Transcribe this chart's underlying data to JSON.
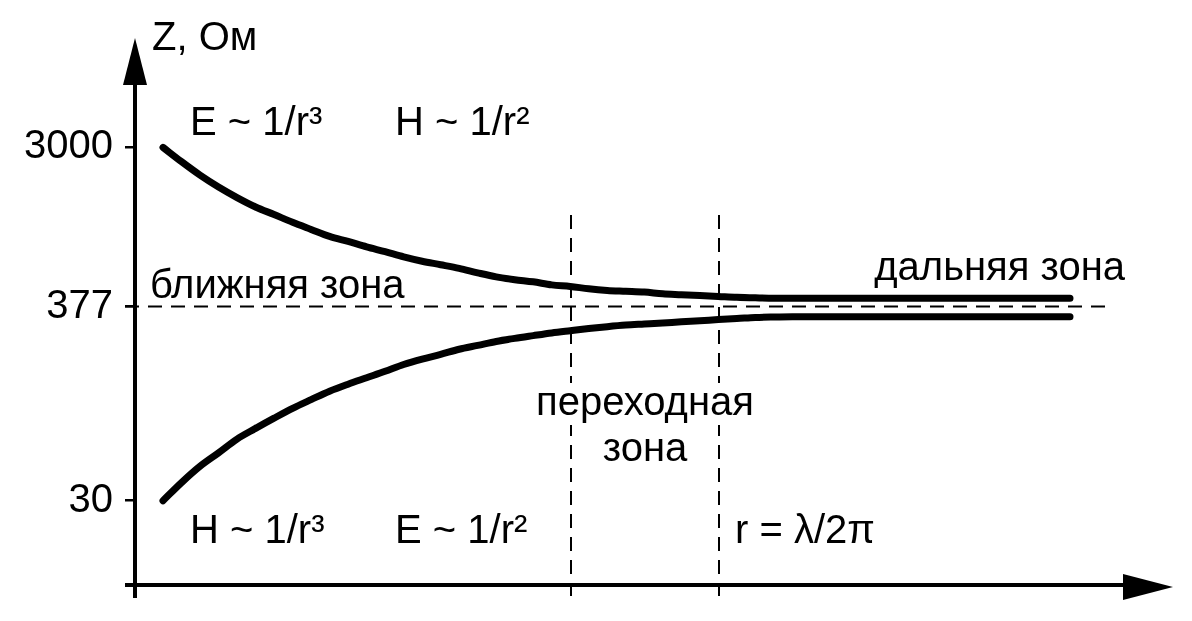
{
  "chart_data": {
    "type": "line",
    "ylabel": "Z, Ом",
    "categories": [
      null,
      null,
      null,
      null,
      null,
      null,
      null,
      null,
      null,
      null,
      null,
      null,
      null,
      null,
      null,
      null,
      null,
      null,
      null,
      null,
      null,
      null,
      null,
      null,
      null,
      null,
      null,
      null,
      null,
      null,
      null,
      null,
      null,
      null,
      null,
      null,
      null,
      null,
      null,
      null,
      null,
      null,
      null,
      null,
      null,
      null,
      null,
      null,
      null,
      null
    ],
    "series": [
      {
        "color": "#000000",
        "values": [
          3000,
          2490,
          2090,
          1790,
          1560,
          1380,
          1250,
          1130,
          1030,
          940,
          880,
          820,
          770,
          720,
          680,
          650,
          620,
          585,
          555,
          535,
          520,
          500,
          490,
          475,
          465,
          460,
          455,
          445,
          440,
          435,
          430,
          425,
          422,
          420,
          420,
          420,
          420,
          420,
          420,
          420,
          420,
          420,
          420,
          420,
          420,
          420,
          420,
          420,
          420,
          420
        ]
      },
      {
        "color": "#000000",
        "values": [
          30,
          38,
          47,
          56,
          67,
          77,
          88,
          100,
          112,
          125,
          137,
          149,
          162,
          177,
          190,
          202,
          216,
          227,
          239,
          249,
          258,
          267,
          275,
          283,
          290,
          296,
          300,
          304,
          309,
          313,
          318,
          322,
          327,
          329,
          330,
          330,
          330,
          330,
          330,
          330,
          330,
          330,
          330,
          330,
          330,
          330,
          330,
          330,
          330,
          330
        ]
      }
    ],
    "ylim": [
      10,
      10000
    ],
    "yticks": [
      30,
      377,
      3000
    ],
    "log": true,
    "tick_labels": "y",
    "ref_lines": [
      {
        "axis": "y",
        "value": 377,
        "line_style": "dashed",
        "color": "#000000"
      }
    ],
    "annotations": [
      "E ~ 1/r³",
      "H ~ 1/r²",
      "дальняя зона",
      "ближняя зона",
      "переходная зона",
      "H ~ 1/r³",
      "E ~ 1/r²",
      "r = λ/2π"
    ]
  }
}
